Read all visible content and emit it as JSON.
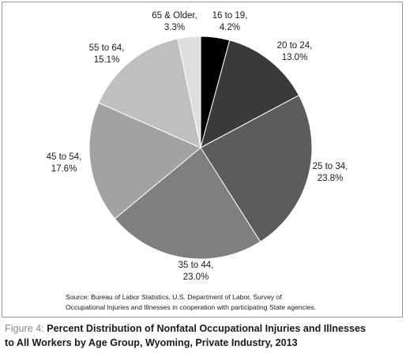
{
  "chart_data": {
    "type": "pie",
    "categories": [
      "16 to 19",
      "20 to 24",
      "25 to 34",
      "35 to 44",
      "45 to 54",
      "55 to 64",
      "65 & Older"
    ],
    "values": [
      4.2,
      13.0,
      23.8,
      23.0,
      17.6,
      15.1,
      3.3
    ],
    "value_labels": [
      "4.2%",
      "13.0%",
      "23.8%",
      "23.0%",
      "17.6%",
      "15.1%",
      "3.3%"
    ],
    "colors": [
      "#000000",
      "#3a3a3a",
      "#5c5c5c",
      "#7f7f7f",
      "#a2a2a2",
      "#bfbfbf",
      "#dedede"
    ],
    "start": "12 o'clock",
    "direction": "clockwise",
    "legend": "none"
  },
  "source_note": {
    "line1": "Source: Bureau of Labor Statistics, U.S. Department of Labor, Survey of",
    "line2": "Occupational Injuries and Illnesses in cooperation with participating State agencies."
  },
  "caption": {
    "prefix": "Figure 4: ",
    "line1": "Percent Distribution of Nonfatal Occupational Injuries and Illnesses",
    "line2": "to All Workers by Age Group, Wyoming, Private Industry, 2013"
  }
}
